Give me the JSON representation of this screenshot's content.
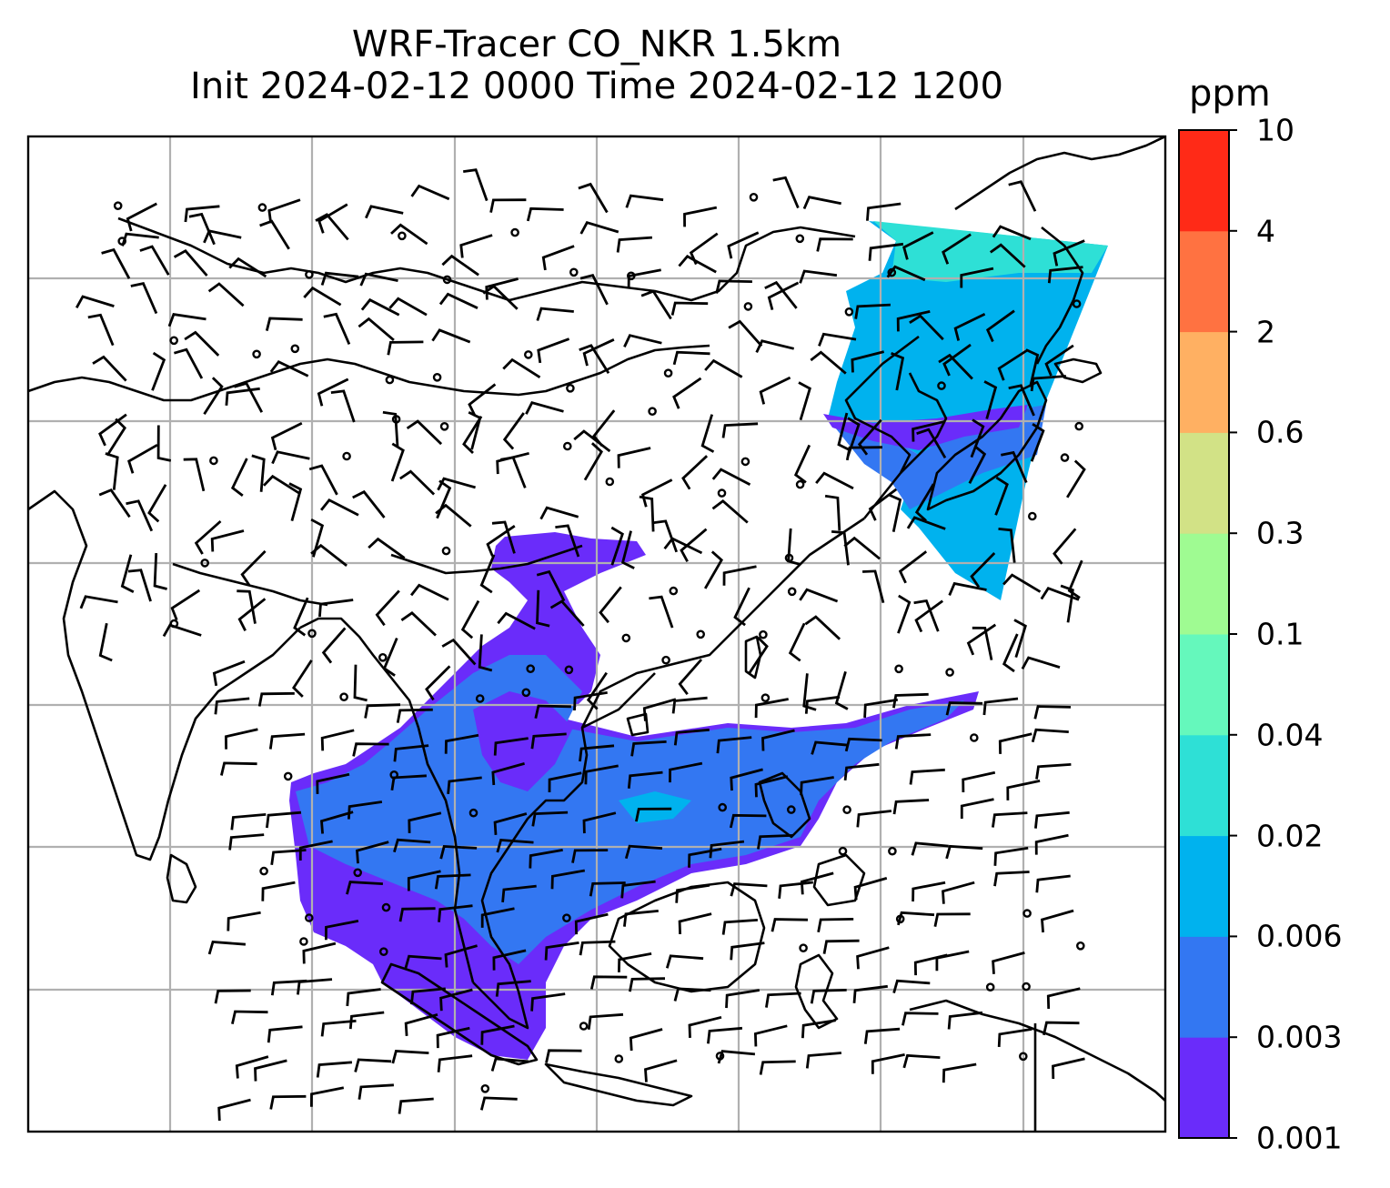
{
  "title": {
    "line1": "WRF-Tracer CO_NKR 1.5km",
    "line2": "Init 2024-02-12 0000 Time 2024-02-12 1200"
  },
  "colorbar": {
    "unit": "ppm",
    "levels": [
      "0.001",
      "0.003",
      "0.006",
      "0.02",
      "0.04",
      "0.1",
      "0.3",
      "0.6",
      "2",
      "4",
      "10"
    ],
    "colors": [
      "#6a2cfa",
      "#3377f2",
      "#00b2ee",
      "#2ee0d6",
      "#65f8bc",
      "#9ffb92",
      "#d2e286",
      "#ffb062",
      "#ff7241",
      "#ff2a17"
    ]
  },
  "map": {
    "gridlines": true,
    "coastline_color": "#000000",
    "grid_color": "#b0b0b0",
    "tracer_color_low": "#6a2cfa",
    "tracer_color_mid": "#3377f2",
    "tracer_color_high": "#2ee0d6",
    "wind_barbs": true
  }
}
